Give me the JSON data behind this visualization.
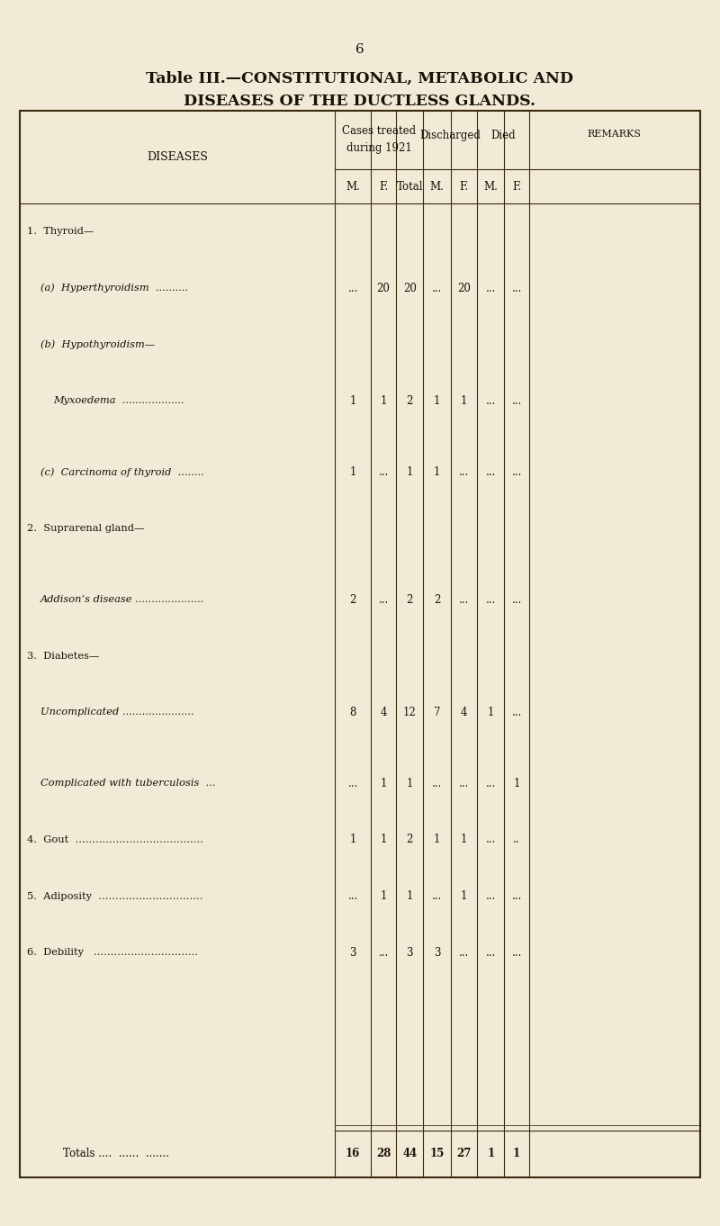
{
  "page_number": "6",
  "title_line1": "Table III.—CONSTITUTIONAL, METABOLIC AND",
  "title_line2": "DISEASES OF THE DUCTLESS GLANDS.",
  "bg_color": "#f0ead6",
  "header_row1": [
    "Cases treated\nduring 1921",
    "Discharged",
    "Died",
    "REMARKS"
  ],
  "header_row2": [
    "M.",
    "F.",
    "Total",
    "M.",
    "F.",
    "M.",
    "F."
  ],
  "col_header_diseases": "DISEASES",
  "rows": [
    {
      "label": "1.  Thyroid—",
      "indent": 0,
      "sub": false,
      "data": [
        "",
        "",
        "",
        "",
        "",
        "",
        ""
      ]
    },
    {
      "label": "(a)  Hyperthyroidism  ..........",
      "indent": 1,
      "sub": true,
      "data": [
        "...",
        "20",
        "20",
        "...",
        "20",
        "...",
        "..."
      ]
    },
    {
      "label": "(b)  Hypothyroidism—",
      "indent": 1,
      "sub": true,
      "data": [
        "",
        "",
        "",
        "",
        "",
        "",
        ""
      ]
    },
    {
      "label": "Myxoedema  ...................",
      "indent": 2,
      "sub": true,
      "data": [
        "1",
        "1",
        "2",
        "1",
        "1",
        "...",
        "..."
      ]
    },
    {
      "label": "(c)  Carcinoma of thyroid  ........",
      "indent": 1,
      "sub": true,
      "data": [
        "1",
        "...",
        "1",
        "1",
        "...",
        "...",
        "..."
      ]
    },
    {
      "label": "2.  Suprarenal gland—",
      "indent": 0,
      "sub": false,
      "data": [
        "",
        "",
        "",
        "",
        "",
        "",
        ""
      ]
    },
    {
      "label": "Addison’s disease .....................",
      "indent": 1,
      "sub": true,
      "data": [
        "2",
        "...",
        "2",
        "2",
        "...",
        "...",
        "..."
      ]
    },
    {
      "label": "3.  Diabetes—",
      "indent": 0,
      "sub": false,
      "data": [
        "",
        "",
        "",
        "",
        "",
        "",
        ""
      ]
    },
    {
      "label": "Uncomplicated ......................",
      "indent": 1,
      "sub": true,
      "data": [
        "8",
        "4",
        "12",
        "7",
        "4",
        "1",
        "..."
      ]
    },
    {
      "label": "Complicated with tuberculosis  ...",
      "indent": 1,
      "sub": true,
      "data": [
        "...",
        "1",
        "1",
        "...",
        "...",
        "...",
        "1"
      ]
    },
    {
      "label": "4.  Gout  ......................................",
      "indent": 0,
      "sub": false,
      "data": [
        "1",
        "1",
        "2",
        "1",
        "1",
        "...",
        ".."
      ]
    },
    {
      "label": "5.  Adiposity  ...............................",
      "indent": 0,
      "sub": false,
      "data": [
        "...",
        "1",
        "1",
        "...",
        "1",
        "...",
        "..."
      ]
    },
    {
      "label": "6.  Debility   ...............................",
      "indent": 0,
      "sub": false,
      "data": [
        "3",
        "...",
        "3",
        "3",
        "...",
        "...",
        "..."
      ]
    }
  ],
  "totals_label": "Totals ....  ......  .......",
  "totals_data": [
    "16",
    "28",
    "44",
    "15",
    "27",
    "1",
    "1"
  ],
  "text_color": "#1a1008",
  "line_color": "#3a2a10"
}
